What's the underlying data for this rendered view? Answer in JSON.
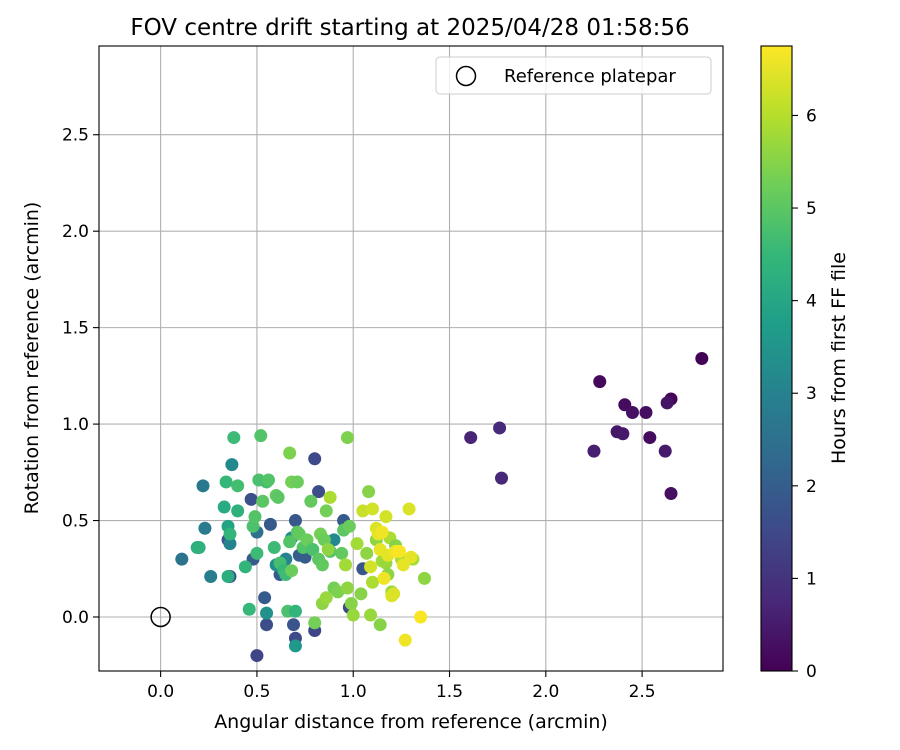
{
  "chart_data": {
    "type": "scatter",
    "title": "FOV centre drift starting at 2025/04/28 01:58:56",
    "xlabel": "Angular distance from reference (arcmin)",
    "ylabel": "Rotation from reference (arcmin)",
    "xlim": [
      -0.32,
      2.92
    ],
    "ylim": [
      -0.28,
      2.96
    ],
    "xticks": [
      0.0,
      0.5,
      1.0,
      1.5,
      2.0,
      2.5
    ],
    "xtick_labels": [
      "0.0",
      "0.5",
      "1.0",
      "1.5",
      "2.0",
      "2.5"
    ],
    "yticks": [
      0.0,
      0.5,
      1.0,
      1.5,
      2.0,
      2.5
    ],
    "ytick_labels": [
      "0.0",
      "0.5",
      "1.0",
      "1.5",
      "2.0",
      "2.5"
    ],
    "grid": true,
    "legend": {
      "placement": "top-right",
      "entries": [
        {
          "label": "Reference platepar",
          "marker": "open-circle"
        }
      ]
    },
    "reference_point": {
      "x": 0.0,
      "y": 0.0
    },
    "colorbar": {
      "label": "Hours from first FF file",
      "colormap": "viridis",
      "range": [
        0,
        6.75
      ],
      "ticks": [
        0,
        1,
        2,
        3,
        4,
        5,
        6
      ],
      "tick_labels": [
        "0",
        "1",
        "2",
        "3",
        "4",
        "5",
        "6"
      ]
    },
    "colormap_stops": [
      "#440154",
      "#482878",
      "#3e4989",
      "#31688e",
      "#26828e",
      "#1f9e89",
      "#35b779",
      "#6ece58",
      "#b5de2b",
      "#fde725"
    ],
    "points": [
      [
        2.81,
        1.34,
        0.05
      ],
      [
        2.28,
        1.22,
        0.15
      ],
      [
        2.41,
        1.1,
        0.2
      ],
      [
        2.52,
        1.06,
        0.25
      ],
      [
        2.45,
        1.06,
        0.3
      ],
      [
        2.65,
        1.13,
        0.1
      ],
      [
        2.63,
        1.11,
        0.35
      ],
      [
        2.37,
        0.96,
        0.4
      ],
      [
        2.4,
        0.95,
        0.45
      ],
      [
        2.54,
        0.93,
        0.2
      ],
      [
        2.62,
        0.86,
        0.5
      ],
      [
        2.25,
        0.86,
        0.6
      ],
      [
        2.65,
        0.64,
        0.3
      ],
      [
        1.61,
        0.93,
        0.7
      ],
      [
        1.76,
        0.98,
        0.8
      ],
      [
        1.77,
        0.72,
        0.75
      ],
      [
        0.8,
        0.82,
        1.5
      ],
      [
        0.82,
        0.65,
        1.6
      ],
      [
        0.47,
        0.61,
        1.7
      ],
      [
        0.35,
        0.4,
        1.8
      ],
      [
        0.57,
        0.48,
        1.9
      ],
      [
        0.7,
        0.5,
        1.85
      ],
      [
        0.54,
        0.1,
        1.9
      ],
      [
        0.55,
        -0.04,
        1.6
      ],
      [
        0.5,
        -0.2,
        1.4
      ],
      [
        0.7,
        -0.11,
        1.5
      ],
      [
        0.8,
        -0.07,
        1.4
      ],
      [
        0.36,
        0.21,
        1.6
      ],
      [
        0.69,
        -0.04,
        1.8
      ],
      [
        0.62,
        0.22,
        1.9
      ],
      [
        0.72,
        0.32,
        2.0
      ],
      [
        0.75,
        0.31,
        1.95
      ],
      [
        0.98,
        0.05,
        1.5
      ],
      [
        1.05,
        0.25,
        1.8
      ],
      [
        0.95,
        0.5,
        1.9
      ],
      [
        0.48,
        0.3,
        1.95
      ],
      [
        0.11,
        0.3,
        2.6
      ],
      [
        0.22,
        0.68,
        2.7
      ],
      [
        0.23,
        0.46,
        2.8
      ],
      [
        0.26,
        0.21,
        2.9
      ],
      [
        0.37,
        0.79,
        3.2
      ],
      [
        0.36,
        0.38,
        3.0
      ],
      [
        0.5,
        0.44,
        2.5
      ],
      [
        0.55,
        0.02,
        3.4
      ],
      [
        0.7,
        -0.15,
        3.6
      ],
      [
        0.6,
        0.27,
        3.3
      ],
      [
        0.65,
        0.3,
        3.0
      ],
      [
        0.68,
        0.41,
        3.4
      ],
      [
        0.9,
        0.4,
        3.2
      ],
      [
        0.19,
        0.36,
        4.2
      ],
      [
        0.2,
        0.36,
        4.3
      ],
      [
        0.33,
        0.57,
        4.1
      ],
      [
        0.34,
        0.7,
        4.5
      ],
      [
        0.35,
        0.47,
        3.9
      ],
      [
        0.35,
        0.21,
        4.2
      ],
      [
        0.36,
        0.43,
        4.4
      ],
      [
        0.38,
        0.93,
        4.6
      ],
      [
        0.4,
        0.55,
        4.3
      ],
      [
        0.4,
        0.68,
        4.7
      ],
      [
        0.44,
        0.26,
        4.4
      ],
      [
        0.46,
        0.04,
        4.5
      ],
      [
        0.48,
        0.47,
        4.8
      ],
      [
        0.49,
        0.52,
        4.9
      ],
      [
        0.5,
        0.33,
        4.6
      ],
      [
        0.51,
        0.71,
        4.8
      ],
      [
        0.52,
        0.94,
        4.9
      ],
      [
        0.53,
        0.6,
        5.0
      ],
      [
        0.55,
        0.7,
        4.7
      ],
      [
        0.56,
        0.71,
        4.9
      ],
      [
        0.59,
        0.36,
        4.6
      ],
      [
        0.6,
        0.63,
        5.1
      ],
      [
        0.61,
        0.62,
        5.0
      ],
      [
        0.62,
        0.28,
        4.7
      ],
      [
        0.64,
        0.24,
        4.5
      ],
      [
        0.65,
        0.22,
        4.6
      ],
      [
        0.66,
        0.03,
        4.8
      ],
      [
        0.67,
        0.39,
        4.9
      ],
      [
        0.68,
        0.24,
        5.2
      ],
      [
        0.7,
        0.03,
        4.4
      ],
      [
        0.71,
        0.44,
        5.0
      ],
      [
        0.72,
        0.43,
        5.1
      ],
      [
        0.74,
        0.36,
        4.9
      ],
      [
        0.76,
        0.4,
        5.2
      ],
      [
        0.78,
        0.6,
        5.1
      ],
      [
        0.79,
        0.35,
        4.8
      ],
      [
        0.8,
        -0.03,
        5.3
      ],
      [
        0.82,
        0.3,
        5.0
      ],
      [
        0.83,
        0.43,
        5.3
      ],
      [
        0.84,
        0.27,
        5.1
      ],
      [
        0.85,
        0.4,
        5.2
      ],
      [
        0.86,
        0.55,
        5.3
      ],
      [
        0.88,
        0.34,
        4.9
      ],
      [
        0.9,
        0.15,
        5.3
      ],
      [
        0.92,
        0.13,
        5.4
      ],
      [
        0.94,
        0.33,
        5.1
      ],
      [
        0.95,
        0.45,
        5.0
      ],
      [
        0.97,
        0.93,
        5.4
      ],
      [
        0.98,
        0.47,
        5.2
      ],
      [
        0.67,
        0.85,
        5.4
      ],
      [
        0.68,
        0.7,
        5.3
      ],
      [
        0.71,
        0.7,
        5.2
      ],
      [
        0.84,
        0.07,
        5.6
      ],
      [
        0.86,
        0.1,
        5.7
      ],
      [
        0.87,
        0.35,
        5.6
      ],
      [
        0.88,
        0.62,
        5.9
      ],
      [
        0.96,
        0.27,
        5.8
      ],
      [
        0.97,
        0.15,
        5.6
      ],
      [
        0.99,
        0.07,
        5.5
      ],
      [
        1.0,
        0.01,
        5.7
      ],
      [
        1.02,
        0.38,
        5.8
      ],
      [
        1.04,
        0.12,
        5.5
      ],
      [
        1.07,
        0.33,
        5.6
      ],
      [
        1.08,
        0.65,
        5.5
      ],
      [
        1.09,
        0.01,
        5.7
      ],
      [
        1.1,
        0.18,
        5.9
      ],
      [
        1.12,
        0.4,
        5.6
      ],
      [
        1.14,
        -0.04,
        5.5
      ],
      [
        1.15,
        0.29,
        5.8
      ],
      [
        1.17,
        0.28,
        5.7
      ],
      [
        1.18,
        0.22,
        5.6
      ],
      [
        1.19,
        0.41,
        5.9
      ],
      [
        1.2,
        0.13,
        5.7
      ],
      [
        1.22,
        0.37,
        5.5
      ],
      [
        1.25,
        0.3,
        5.9
      ],
      [
        1.31,
        0.3,
        5.8
      ],
      [
        1.37,
        0.2,
        5.6
      ],
      [
        1.05,
        0.55,
        6.2
      ],
      [
        1.1,
        0.56,
        6.3
      ],
      [
        1.12,
        0.46,
        6.4
      ],
      [
        1.13,
        0.43,
        6.5
      ],
      [
        1.15,
        0.44,
        6.6
      ],
      [
        1.17,
        0.52,
        6.3
      ],
      [
        1.18,
        0.32,
        6.5
      ],
      [
        1.2,
        0.11,
        6.4
      ],
      [
        1.22,
        0.34,
        6.6
      ],
      [
        1.24,
        0.34,
        6.7
      ],
      [
        1.26,
        0.27,
        6.5
      ],
      [
        1.27,
        -0.12,
        6.6
      ],
      [
        1.29,
        0.56,
        6.4
      ],
      [
        1.3,
        0.31,
        6.5
      ],
      [
        1.35,
        0.0,
        6.7
      ],
      [
        1.16,
        0.2,
        6.6
      ],
      [
        1.09,
        0.26,
        6.3
      ],
      [
        1.14,
        0.35,
        6.5
      ],
      [
        1.21,
        0.12,
        6.4
      ]
    ]
  }
}
